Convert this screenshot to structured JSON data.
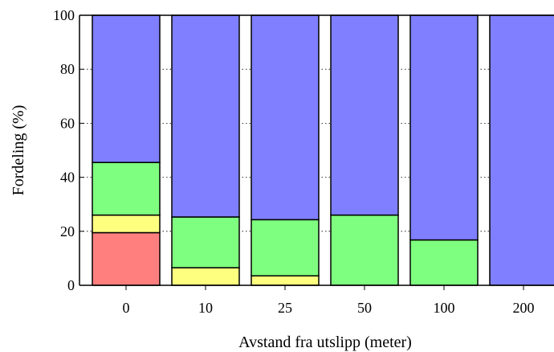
{
  "chart_data": {
    "type": "bar",
    "stacked": true,
    "xlabel": "Avstand fra utslipp (meter)",
    "ylabel": "Fordeling (%)",
    "ylim": [
      0,
      100
    ],
    "yticks": [
      0,
      20,
      40,
      60,
      80,
      100
    ],
    "grid": "horizontal dotted",
    "categories": [
      "0",
      "10",
      "25",
      "50",
      "100",
      "200"
    ],
    "series": [
      {
        "color": "#ff7f7f",
        "values": [
          19.5,
          0,
          0,
          0,
          0,
          0
        ]
      },
      {
        "color": "#ffff7f",
        "values": [
          6.5,
          6.5,
          3.5,
          0,
          0,
          0
        ]
      },
      {
        "color": "#7fff7f",
        "values": [
          19.5,
          18.8,
          20.8,
          26,
          16.8,
          0
        ]
      },
      {
        "color": "#7f7fff",
        "values": [
          54.5,
          74.7,
          75.7,
          74,
          83.2,
          100
        ]
      }
    ]
  }
}
